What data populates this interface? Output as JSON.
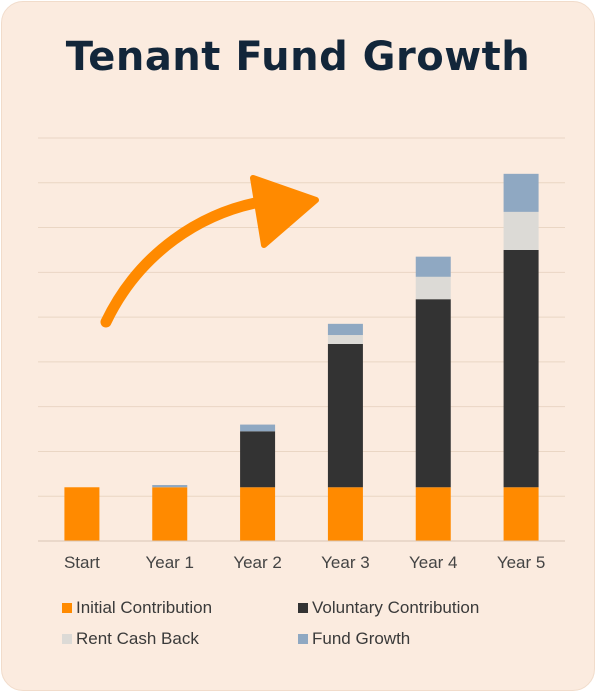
{
  "card": {
    "title": "Tenant Fund Growth"
  },
  "chart_data": {
    "type": "bar",
    "stacked": true,
    "title": "Tenant Fund Growth",
    "xlabel": "",
    "ylabel": "",
    "categories": [
      "Start",
      "Year 1",
      "Year 2",
      "Year 3",
      "Year 4",
      "Year 5"
    ],
    "series": [
      {
        "name": "Initial Contribution",
        "color": "#ff8a00",
        "values": [
          1.2,
          1.2,
          1.2,
          1.2,
          1.2,
          1.2
        ]
      },
      {
        "name": "Voluntary Contribution",
        "color": "#333333",
        "values": [
          0,
          0,
          1.25,
          3.2,
          4.2,
          5.3
        ]
      },
      {
        "name": "Rent Cash Back",
        "color": "#dcdad6",
        "values": [
          0,
          0,
          0,
          0.2,
          0.5,
          0.85
        ]
      },
      {
        "name": "Fund Growth",
        "color": "#8fa8c2",
        "values": [
          0,
          0.05,
          0.15,
          0.25,
          0.45,
          0.85
        ]
      }
    ],
    "ylim": [
      0,
      9
    ],
    "grid": true,
    "legend_position": "bottom",
    "annotation": {
      "type": "arrow",
      "color": "#ff8a00",
      "direction": "up-right"
    }
  }
}
